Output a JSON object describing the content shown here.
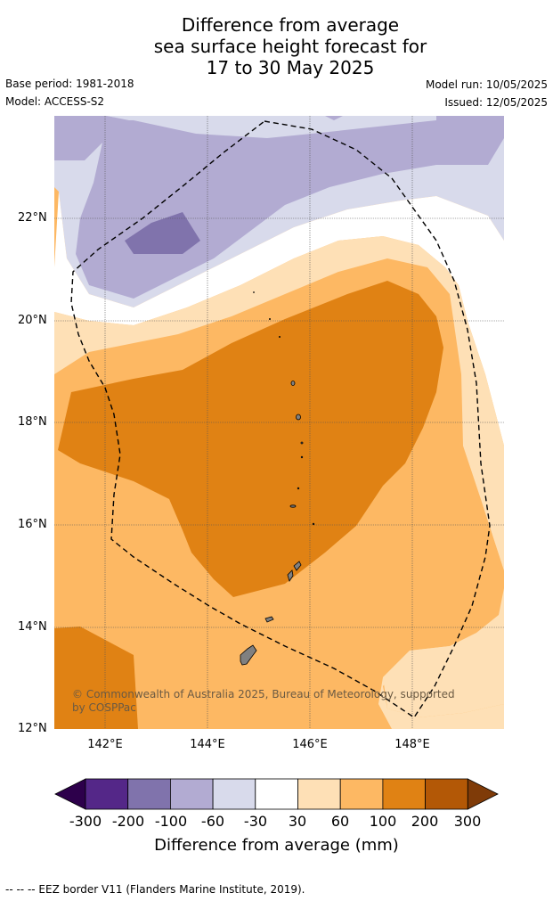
{
  "header": {
    "title_line1": "Difference from average",
    "title_line2": "sea surface height forecast for",
    "title_line3": "17 to 30 May 2025",
    "base_period": "Base period: 1981-2018",
    "model": "Model: ACCESS-S2",
    "model_run": "Model run: 10/05/2025",
    "issued": "Issued: 12/05/2025"
  },
  "map": {
    "lat_labels": [
      "22°N",
      "20°N",
      "18°N",
      "16°N",
      "14°N",
      "12°N"
    ],
    "lon_labels": [
      "142°E",
      "144°E",
      "146°E",
      "148°E"
    ],
    "copyright": "© Commonwealth of Australia 2025, Bureau of Meteorology, supported by COSPPac",
    "colors": {
      "n300": "#2d004b",
      "n200": "#542788",
      "n100": "#8073ac",
      "n60": "#b2abd2",
      "n30": "#d8daeb",
      "zero": "#ffffff",
      "p30": "#fee0b6",
      "p60": "#fdb863",
      "p100": "#e08214",
      "p200": "#b35806",
      "p300": "#7f3b08",
      "land": "#808080"
    }
  },
  "colorbar": {
    "labels": [
      "-300",
      "-200",
      "-100",
      "-60",
      "-30",
      "30",
      "60",
      "100",
      "200",
      "300"
    ],
    "title": "Difference from average (mm)"
  },
  "footer": {
    "eez_note": "--  --  -- EEZ border V11 (Flanders Marine Institute, 2019)."
  }
}
